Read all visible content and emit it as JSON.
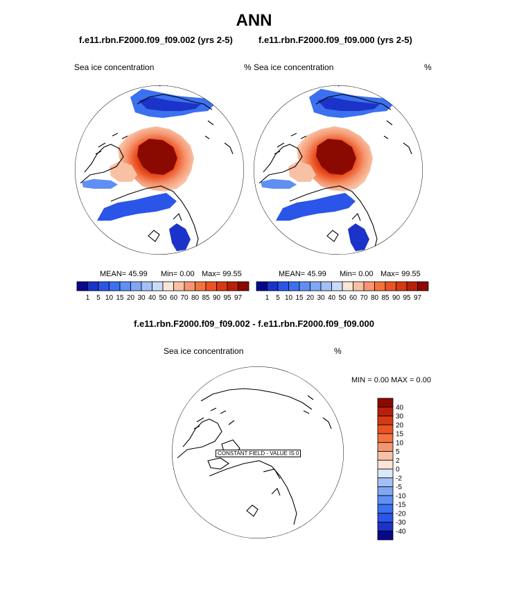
{
  "page": {
    "title": "ANN",
    "left_case": "f.e11.rbn.F2000.f09_f09.002 (yrs 2-5)",
    "right_case": "f.e11.rbn.F2000.f09_f09.000 (yrs 2-5)",
    "diff_title": "f.e11.rbn.F2000.f09_f09.002 - f.e11.rbn.F2000.f09_f09.000"
  },
  "panels": {
    "left": {
      "variable": "Sea ice concentration",
      "units": "%",
      "mean": "MEAN=  45.99",
      "min": "Min=   0.00",
      "max": "Max=  99.55"
    },
    "right": {
      "variable": "Sea ice concentration",
      "units": "%",
      "mean": "MEAN=  45.99",
      "min": "Min=   0.00",
      "max": "Max=  99.55"
    },
    "diff": {
      "variable": "Sea ice concentration",
      "units": "%",
      "minmax": "MIN =   0.00 MAX =   0.00",
      "constant_field": "CONSTANT FIELD - VALUE IS 0"
    }
  },
  "colorbar_main": {
    "labels": [
      "1",
      "5",
      "10",
      "15",
      "20",
      "30",
      "40",
      "50",
      "60",
      "70",
      "80",
      "85",
      "90",
      "95",
      "97"
    ],
    "colors": [
      "#08088a",
      "#1b33c8",
      "#2a55e8",
      "#3b70f0",
      "#5f8ff2",
      "#7fa8f4",
      "#a3c0f6",
      "#c9dbf8",
      "#fbe5d8",
      "#f8c1a4",
      "#f59670",
      "#f3733f",
      "#ec5322",
      "#d73a13",
      "#b8200a",
      "#8a0a02"
    ]
  },
  "colorbar_diff": {
    "labels": [
      "40",
      "30",
      "20",
      "15",
      "10",
      "5",
      "2",
      "0",
      "-2",
      "-5",
      "-10",
      "-15",
      "-20",
      "-30",
      "-40"
    ],
    "colors": [
      "#8a0a02",
      "#b8200a",
      "#d73a13",
      "#ec5322",
      "#f3733f",
      "#f59670",
      "#f8c1a4",
      "#fbe5d8",
      "#dbe7fa",
      "#a3c0f6",
      "#7fa8f4",
      "#5f8ff2",
      "#3b70f0",
      "#2a55e8",
      "#1b33c8",
      "#08088a"
    ]
  }
}
